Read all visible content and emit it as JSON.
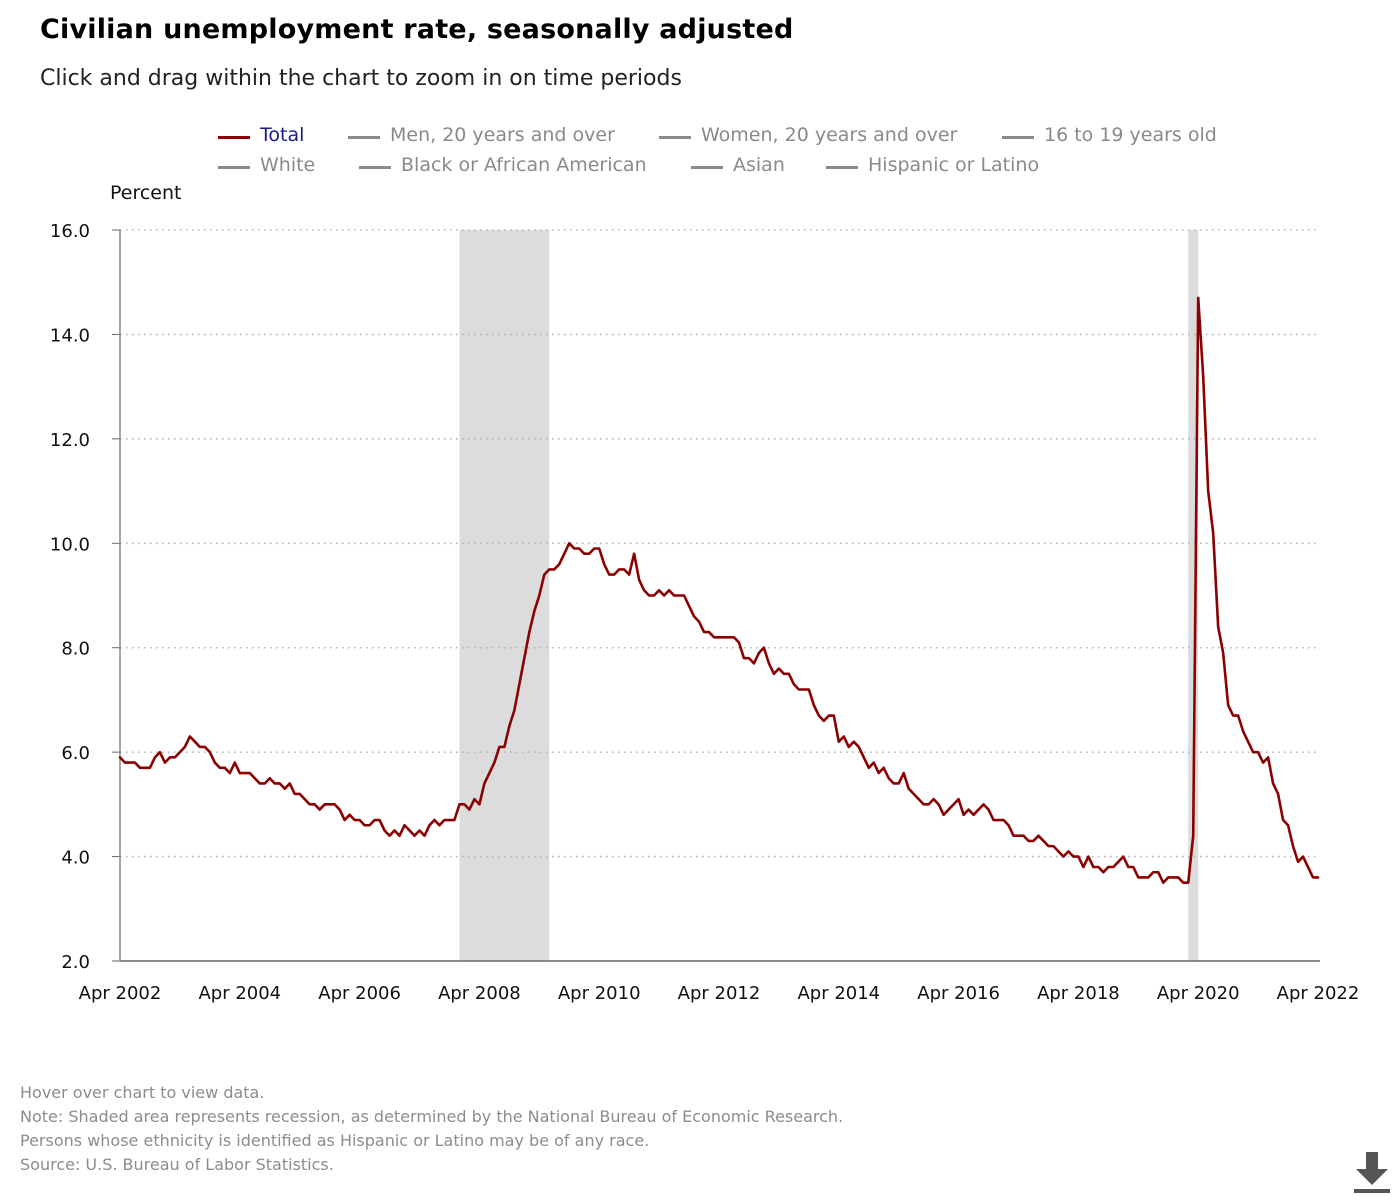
{
  "title": "Civilian unemployment rate, seasonally adjusted",
  "subtitle": "Click and drag within the chart to zoom in on time periods",
  "legend": [
    {
      "label": "Total",
      "active": true
    },
    {
      "label": "Men, 20 years and over",
      "active": false
    },
    {
      "label": "Women, 20 years and over",
      "active": false
    },
    {
      "label": "16 to 19 years old",
      "active": false
    },
    {
      "label": "White",
      "active": false
    },
    {
      "label": "Black or African American",
      "active": false
    },
    {
      "label": "Asian",
      "active": false
    },
    {
      "label": "Hispanic or Latino",
      "active": false
    }
  ],
  "footnotes": [
    "Hover over chart to view data.",
    "Note: Shaded area represents recession, as determined by the National Bureau of Economic Research.",
    "Persons whose ethnicity is identified as Hispanic or Latino may be of any race.",
    "Source: U.S. Bureau of Labor Statistics."
  ],
  "icons": {
    "download": "download-icon"
  },
  "colors": {
    "series": "#8b0000",
    "recession": "#dcdcdc",
    "active_legend_text": "#1a1a8c",
    "inactive_legend": "#8a8a8a"
  },
  "chart_data": {
    "type": "line",
    "ylabel": "Percent",
    "xlabel": "",
    "ylim": [
      2.0,
      16.0
    ],
    "yticks": [
      "2.0",
      "4.0",
      "6.0",
      "8.0",
      "10.0",
      "12.0",
      "14.0",
      "16.0"
    ],
    "xticks": [
      "Apr 2002",
      "Apr 2004",
      "Apr 2006",
      "Apr 2008",
      "Apr 2010",
      "Apr 2012",
      "Apr 2014",
      "Apr 2016",
      "Apr 2018",
      "Apr 2020",
      "Apr 2022"
    ],
    "x_range": [
      "2002-04",
      "2022-04"
    ],
    "grid": "horizontal dotted",
    "recessions": [
      {
        "start": "2007-12",
        "end": "2009-06"
      },
      {
        "start": "2020-02",
        "end": "2020-04"
      }
    ],
    "series": [
      {
        "name": "Total",
        "start": "2002-04",
        "frequency": "monthly",
        "values": [
          5.9,
          5.8,
          5.8,
          5.8,
          5.7,
          5.7,
          5.7,
          5.9,
          6.0,
          5.8,
          5.9,
          5.9,
          6.0,
          6.1,
          6.3,
          6.2,
          6.1,
          6.1,
          6.0,
          5.8,
          5.7,
          5.7,
          5.6,
          5.8,
          5.6,
          5.6,
          5.6,
          5.5,
          5.4,
          5.4,
          5.5,
          5.4,
          5.4,
          5.3,
          5.4,
          5.2,
          5.2,
          5.1,
          5.0,
          5.0,
          4.9,
          5.0,
          5.0,
          5.0,
          4.9,
          4.7,
          4.8,
          4.7,
          4.7,
          4.6,
          4.6,
          4.7,
          4.7,
          4.5,
          4.4,
          4.5,
          4.4,
          4.6,
          4.5,
          4.4,
          4.5,
          4.4,
          4.6,
          4.7,
          4.6,
          4.7,
          4.7,
          4.7,
          5.0,
          5.0,
          4.9,
          5.1,
          5.0,
          5.4,
          5.6,
          5.8,
          6.1,
          6.1,
          6.5,
          6.8,
          7.3,
          7.8,
          8.3,
          8.7,
          9.0,
          9.4,
          9.5,
          9.5,
          9.6,
          9.8,
          10.0,
          9.9,
          9.9,
          9.8,
          9.8,
          9.9,
          9.9,
          9.6,
          9.4,
          9.4,
          9.5,
          9.5,
          9.4,
          9.8,
          9.3,
          9.1,
          9.0,
          9.0,
          9.1,
          9.0,
          9.1,
          9.0,
          9.0,
          9.0,
          8.8,
          8.6,
          8.5,
          8.3,
          8.3,
          8.2,
          8.2,
          8.2,
          8.2,
          8.2,
          8.1,
          7.8,
          7.8,
          7.7,
          7.9,
          8.0,
          7.7,
          7.5,
          7.6,
          7.5,
          7.5,
          7.3,
          7.2,
          7.2,
          7.2,
          6.9,
          6.7,
          6.6,
          6.7,
          6.7,
          6.2,
          6.3,
          6.1,
          6.2,
          6.1,
          5.9,
          5.7,
          5.8,
          5.6,
          5.7,
          5.5,
          5.4,
          5.4,
          5.6,
          5.3,
          5.2,
          5.1,
          5.0,
          5.0,
          5.1,
          5.0,
          4.8,
          4.9,
          5.0,
          5.1,
          4.8,
          4.9,
          4.8,
          4.9,
          5.0,
          4.9,
          4.7,
          4.7,
          4.7,
          4.6,
          4.4,
          4.4,
          4.4,
          4.3,
          4.3,
          4.4,
          4.3,
          4.2,
          4.2,
          4.1,
          4.0,
          4.1,
          4.0,
          4.0,
          3.8,
          4.0,
          3.8,
          3.8,
          3.7,
          3.8,
          3.8,
          3.9,
          4.0,
          3.8,
          3.8,
          3.6,
          3.6,
          3.6,
          3.7,
          3.7,
          3.5,
          3.6,
          3.6,
          3.6,
          3.5,
          3.5,
          4.4,
          14.7,
          13.2,
          11.0,
          10.2,
          8.4,
          7.9,
          6.9,
          6.7,
          6.7,
          6.4,
          6.2,
          6.0,
          6.0,
          5.8,
          5.9,
          5.4,
          5.2,
          4.7,
          4.6,
          4.2,
          3.9,
          4.0,
          3.8,
          3.6,
          3.6
        ]
      }
    ]
  }
}
